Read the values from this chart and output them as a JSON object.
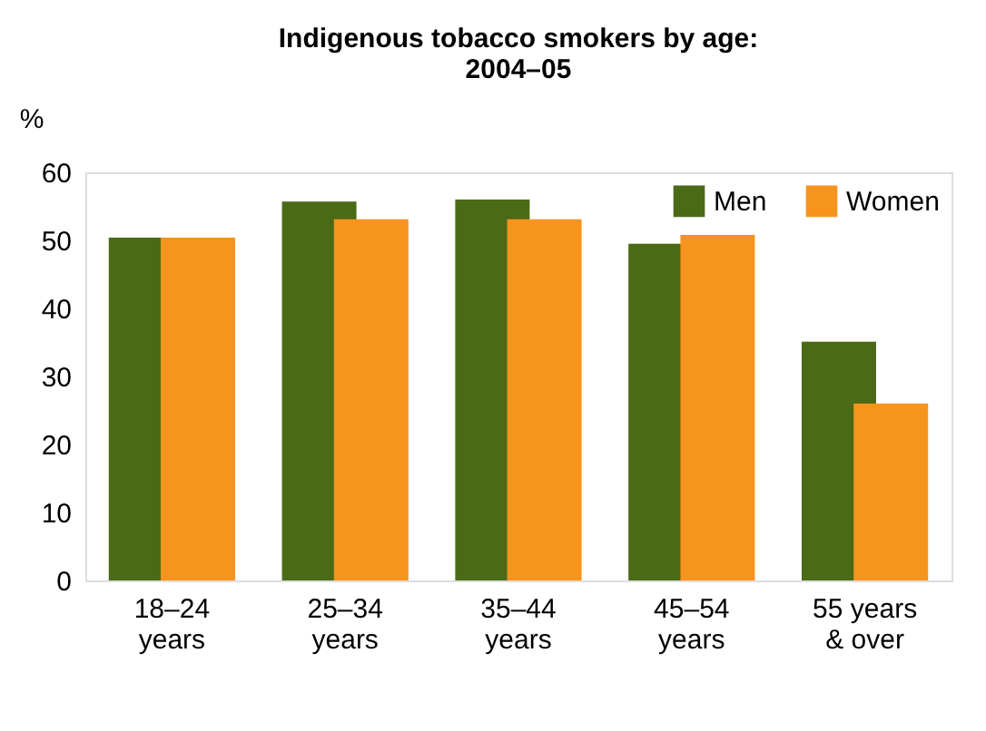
{
  "chart_data": {
    "type": "bar",
    "title": [
      "Indigenous tobacco smokers by age:",
      "2004–05"
    ],
    "ylabel": "%",
    "categories": [
      "18–24\nyears",
      "25–34\nyears",
      "35–44\nyears",
      "45–54\nyears",
      "55 years\n& over"
    ],
    "series": [
      {
        "name": "Men",
        "color": "#4b6a15",
        "values": [
          50.4,
          55.7,
          56.0,
          49.5,
          35.1
        ]
      },
      {
        "name": "Women",
        "color": "#f7941d",
        "values": [
          50.4,
          53.1,
          53.1,
          50.8,
          26.0
        ]
      }
    ],
    "ylim": [
      0,
      60
    ],
    "yticks": [
      0,
      10,
      20,
      30,
      40,
      50,
      60
    ],
    "grid": false,
    "legend": "top right"
  }
}
